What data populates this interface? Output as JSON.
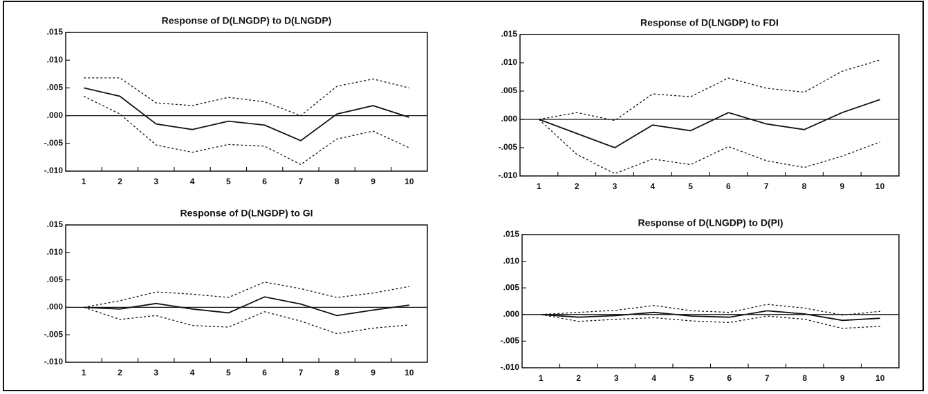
{
  "chart_data": [
    {
      "type": "line",
      "title": "Response of D(LNGDP) to D(LNGDP)",
      "categories": [
        "1",
        "2",
        "3",
        "4",
        "5",
        "6",
        "7",
        "8",
        "9",
        "10"
      ],
      "ylim": [
        -0.01,
        0.015
      ],
      "yticks": [
        {
          "value": 0.015,
          "label": ".015"
        },
        {
          "value": 0.01,
          "label": ".010"
        },
        {
          "value": 0.005,
          "label": ".005"
        },
        {
          "value": 0,
          "label": ".000"
        },
        {
          "value": -0.005,
          "label": "-.005"
        },
        {
          "value": -0.01,
          "label": "-.010"
        }
      ],
      "series": [
        {
          "color": "#111",
          "dashed": false,
          "values": [
            0.005,
            0.0035,
            -0.0015,
            -0.0025,
            -0.001,
            -0.0017,
            -0.0045,
            0.0003,
            0.0018,
            -0.0003
          ]
        },
        {
          "color": "#111",
          "dashed": true,
          "values": [
            0.0068,
            0.0068,
            0.0023,
            0.0018,
            0.0033,
            0.0025,
            0.0,
            0.0053,
            0.0066,
            0.005
          ]
        },
        {
          "color": "#111",
          "dashed": true,
          "values": [
            0.0035,
            0.0003,
            -0.0053,
            -0.0066,
            -0.0052,
            -0.0055,
            -0.0088,
            -0.0042,
            -0.0028,
            -0.0058
          ]
        }
      ]
    },
    {
      "type": "line",
      "title": "Response of D(LNGDP) to FDI",
      "categories": [
        "1",
        "2",
        "3",
        "4",
        "5",
        "6",
        "7",
        "8",
        "9",
        "10"
      ],
      "ylim": [
        -0.01,
        0.015
      ],
      "yticks": [
        {
          "value": 0.015,
          "label": ".015"
        },
        {
          "value": 0.01,
          "label": ".010"
        },
        {
          "value": 0.005,
          "label": ".005"
        },
        {
          "value": 0,
          "label": ".000"
        },
        {
          "value": -0.005,
          "label": "-.005"
        },
        {
          "value": -0.01,
          "label": "-.010"
        }
      ],
      "series": [
        {
          "color": "#111",
          "dashed": false,
          "values": [
            0,
            -0.0025,
            -0.005,
            -0.001,
            -0.002,
            0.0012,
            -0.0008,
            -0.0018,
            0.0012,
            0.0035
          ]
        },
        {
          "color": "#111",
          "dashed": true,
          "values": [
            0,
            0.0012,
            -0.0002,
            0.0045,
            0.004,
            0.0073,
            0.0055,
            0.0048,
            0.0085,
            0.0105
          ]
        },
        {
          "color": "#111",
          "dashed": true,
          "values": [
            0,
            -0.0062,
            -0.0096,
            -0.007,
            -0.008,
            -0.0048,
            -0.0073,
            -0.0085,
            -0.0065,
            -0.004
          ]
        }
      ]
    },
    {
      "type": "line",
      "title": "Response of D(LNGDP) to GI",
      "categories": [
        "1",
        "2",
        "3",
        "4",
        "5",
        "6",
        "7",
        "8",
        "9",
        "10"
      ],
      "ylim": [
        -0.01,
        0.015
      ],
      "yticks": [
        {
          "value": 0.015,
          "label": ".015"
        },
        {
          "value": 0.01,
          "label": ".010"
        },
        {
          "value": 0.005,
          "label": ".005"
        },
        {
          "value": 0,
          "label": ".000"
        },
        {
          "value": -0.005,
          "label": "-.005"
        },
        {
          "value": -0.01,
          "label": "-.010"
        }
      ],
      "series": [
        {
          "color": "#111",
          "dashed": false,
          "values": [
            0,
            -0.0003,
            0.0007,
            -0.0003,
            -0.001,
            0.0019,
            0.0006,
            -0.0015,
            -0.0005,
            0.0004
          ]
        },
        {
          "color": "#111",
          "dashed": true,
          "values": [
            0,
            0.0012,
            0.0028,
            0.0024,
            0.0018,
            0.0046,
            0.0034,
            0.0018,
            0.0026,
            0.0038
          ]
        },
        {
          "color": "#111",
          "dashed": true,
          "values": [
            0,
            -0.0022,
            -0.0015,
            -0.0033,
            -0.0036,
            -0.0008,
            -0.0025,
            -0.0048,
            -0.0038,
            -0.0032
          ]
        }
      ]
    },
    {
      "type": "line",
      "title": "Response of D(LNGDP) to D(PI)",
      "categories": [
        "1",
        "2",
        "3",
        "4",
        "5",
        "6",
        "7",
        "8",
        "9",
        "10"
      ],
      "ylim": [
        -0.01,
        0.015
      ],
      "yticks": [
        {
          "value": 0.015,
          "label": ".015"
        },
        {
          "value": 0.01,
          "label": ".010"
        },
        {
          "value": 0.005,
          "label": ".005"
        },
        {
          "value": 0,
          "label": ".000"
        },
        {
          "value": -0.005,
          "label": "-.005"
        },
        {
          "value": -0.01,
          "label": "-.010"
        }
      ],
      "series": [
        {
          "color": "#111",
          "dashed": false,
          "values": [
            0,
            -0.0005,
            -0.0002,
            0.0004,
            -0.0003,
            -0.0005,
            0.0007,
            0.0001,
            -0.0011,
            -0.0007
          ]
        },
        {
          "color": "#111",
          "dashed": true,
          "values": [
            0,
            0.0004,
            0.0008,
            0.0017,
            0.0007,
            0.0004,
            0.0019,
            0.0012,
            -0.0001,
            0.0006
          ]
        },
        {
          "color": "#111",
          "dashed": true,
          "values": [
            0,
            -0.0013,
            -0.0009,
            -0.0006,
            -0.0012,
            -0.0015,
            -0.0003,
            -0.0009,
            -0.0026,
            -0.0022
          ]
        }
      ]
    }
  ]
}
